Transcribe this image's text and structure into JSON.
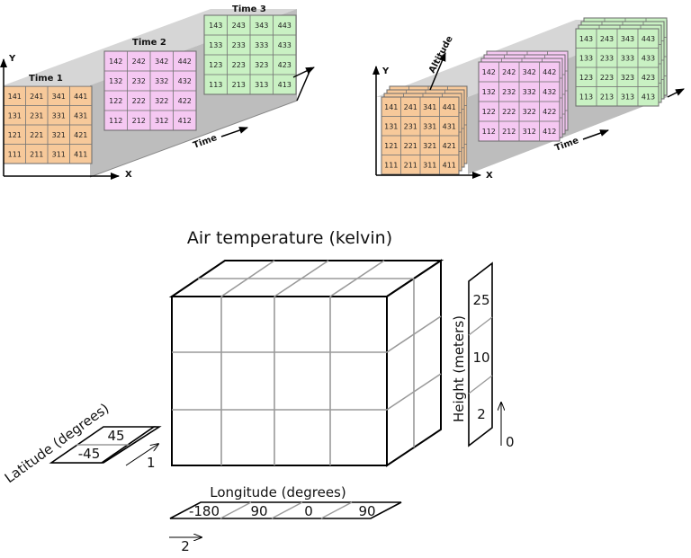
{
  "colors": {
    "time1": "#f7c99a",
    "time2": "#f5c8f2",
    "time3": "#c9f1c3",
    "plane": "#c8c8c8",
    "grid_line": "#9a9a9a",
    "outline": "#000000"
  },
  "top_left": {
    "axis_y": "Y",
    "axis_x": "X",
    "time_axis_label": "Time",
    "grids": [
      {
        "label": "Time 1",
        "rows": [
          [
            "141",
            "241",
            "341",
            "441"
          ],
          [
            "131",
            "231",
            "331",
            "431"
          ],
          [
            "121",
            "221",
            "321",
            "421"
          ],
          [
            "111",
            "211",
            "311",
            "411"
          ]
        ]
      },
      {
        "label": "Time 2",
        "rows": [
          [
            "142",
            "242",
            "342",
            "442"
          ],
          [
            "132",
            "232",
            "332",
            "432"
          ],
          [
            "122",
            "222",
            "322",
            "422"
          ],
          [
            "112",
            "212",
            "312",
            "412"
          ]
        ]
      },
      {
        "label": "Time 3",
        "rows": [
          [
            "143",
            "243",
            "343",
            "443"
          ],
          [
            "133",
            "233",
            "333",
            "433"
          ],
          [
            "123",
            "223",
            "323",
            "423"
          ],
          [
            "113",
            "213",
            "313",
            "413"
          ]
        ]
      }
    ]
  },
  "top_right": {
    "axis_y": "Y",
    "axis_x": "X",
    "time_axis_label": "Time",
    "altitude_label": "Altitude"
  },
  "bottom": {
    "title": "Air temperature (kelvin)",
    "latitude": {
      "axis_label": "Latitude (degrees)",
      "values": [
        "45",
        "-45"
      ],
      "dim_index": "1"
    },
    "longitude": {
      "axis_label": "Longitude (degrees)",
      "values": [
        "-180",
        "90",
        "0",
        "90"
      ],
      "dim_index": "2"
    },
    "height": {
      "axis_label": "Height (meters)",
      "values": [
        "25",
        "10",
        "2"
      ],
      "dim_index": "0"
    }
  }
}
